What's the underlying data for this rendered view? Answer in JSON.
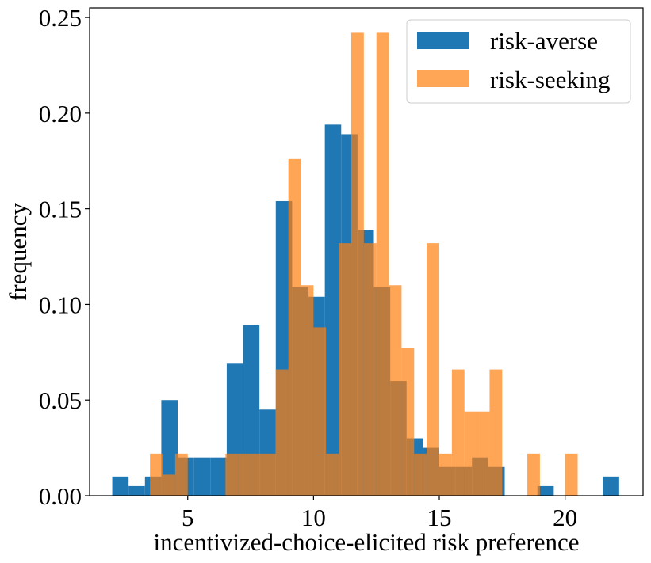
{
  "chart_data": {
    "type": "bar",
    "title": "",
    "xlabel": "incentivized-choice-elicited risk preference",
    "ylabel": "frequency",
    "xlim": [
      1.1,
      23.1
    ],
    "ylim": [
      0,
      0.255
    ],
    "xticks": [
      5,
      10,
      15,
      20
    ],
    "xtick_labels": [
      "5",
      "10",
      "15",
      "20"
    ],
    "yticks": [
      0,
      0.05,
      0.1,
      0.15,
      0.2,
      0.25
    ],
    "ytick_labels": [
      "0.00",
      "0.05",
      "0.10",
      "0.15",
      "0.20",
      "0.25"
    ],
    "grid": false,
    "legend_position": "top-right",
    "series": [
      {
        "name": "risk-averse",
        "color": "#1f77b4",
        "opacity": 1.0,
        "bins": [
          {
            "x0": 2.0,
            "x1": 2.65,
            "y": 0.01
          },
          {
            "x0": 2.65,
            "x1": 3.3,
            "y": 0.005
          },
          {
            "x0": 3.3,
            "x1": 3.95,
            "y": 0.01
          },
          {
            "x0": 3.95,
            "x1": 4.6,
            "y": 0.05
          },
          {
            "x0": 4.6,
            "x1": 5.25,
            "y": 0.02
          },
          {
            "x0": 5.25,
            "x1": 5.9,
            "y": 0.02
          },
          {
            "x0": 5.9,
            "x1": 6.55,
            "y": 0.02
          },
          {
            "x0": 6.55,
            "x1": 7.2,
            "y": 0.069
          },
          {
            "x0": 7.2,
            "x1": 7.85,
            "y": 0.089
          },
          {
            "x0": 7.85,
            "x1": 8.5,
            "y": 0.045
          },
          {
            "x0": 8.5,
            "x1": 9.15,
            "y": 0.154
          },
          {
            "x0": 9.15,
            "x1": 9.8,
            "y": 0.109
          },
          {
            "x0": 9.8,
            "x1": 10.45,
            "y": 0.104
          },
          {
            "x0": 10.45,
            "x1": 11.1,
            "y": 0.194
          },
          {
            "x0": 11.1,
            "x1": 11.75,
            "y": 0.189
          },
          {
            "x0": 11.75,
            "x1": 12.4,
            "y": 0.139
          },
          {
            "x0": 12.4,
            "x1": 13.05,
            "y": 0.109
          },
          {
            "x0": 13.05,
            "x1": 13.7,
            "y": 0.06
          },
          {
            "x0": 13.7,
            "x1": 14.35,
            "y": 0.03
          },
          {
            "x0": 14.35,
            "x1": 15.0,
            "y": 0.025
          },
          {
            "x0": 15.0,
            "x1": 15.65,
            "y": 0.015
          },
          {
            "x0": 15.65,
            "x1": 16.3,
            "y": 0.015
          },
          {
            "x0": 16.3,
            "x1": 16.95,
            "y": 0.02
          },
          {
            "x0": 16.95,
            "x1": 17.6,
            "y": 0.015
          },
          {
            "x0": 17.6,
            "x1": 18.25,
            "y": 0.0
          },
          {
            "x0": 18.25,
            "x1": 18.9,
            "y": 0.0
          },
          {
            "x0": 18.9,
            "x1": 19.55,
            "y": 0.005
          },
          {
            "x0": 19.55,
            "x1": 20.2,
            "y": 0.0
          },
          {
            "x0": 20.2,
            "x1": 20.85,
            "y": 0.0
          },
          {
            "x0": 20.85,
            "x1": 21.5,
            "y": 0.0
          },
          {
            "x0": 21.5,
            "x1": 22.15,
            "y": 0.01
          }
        ]
      },
      {
        "name": "risk-seeking",
        "color": "#ff7f0e",
        "opacity": 0.7,
        "bins": [
          {
            "x0": 3.5,
            "x1": 4.0,
            "y": 0.022
          },
          {
            "x0": 4.0,
            "x1": 4.5,
            "y": 0.011
          },
          {
            "x0": 4.5,
            "x1": 5.0,
            "y": 0.022
          },
          {
            "x0": 5.0,
            "x1": 5.5,
            "y": 0.0
          },
          {
            "x0": 5.5,
            "x1": 6.0,
            "y": 0.0
          },
          {
            "x0": 6.0,
            "x1": 6.5,
            "y": 0.0
          },
          {
            "x0": 6.5,
            "x1": 7.0,
            "y": 0.022
          },
          {
            "x0": 7.0,
            "x1": 7.5,
            "y": 0.022
          },
          {
            "x0": 7.5,
            "x1": 8.0,
            "y": 0.022
          },
          {
            "x0": 8.0,
            "x1": 8.5,
            "y": 0.022
          },
          {
            "x0": 8.5,
            "x1": 9.0,
            "y": 0.066
          },
          {
            "x0": 9.0,
            "x1": 9.5,
            "y": 0.176
          },
          {
            "x0": 9.5,
            "x1": 10.0,
            "y": 0.11
          },
          {
            "x0": 10.0,
            "x1": 10.5,
            "y": 0.088
          },
          {
            "x0": 10.5,
            "x1": 11.0,
            "y": 0.022
          },
          {
            "x0": 11.0,
            "x1": 11.5,
            "y": 0.132
          },
          {
            "x0": 11.5,
            "x1": 12.0,
            "y": 0.242
          },
          {
            "x0": 12.0,
            "x1": 12.5,
            "y": 0.132
          },
          {
            "x0": 12.5,
            "x1": 13.0,
            "y": 0.242
          },
          {
            "x0": 13.0,
            "x1": 13.5,
            "y": 0.11
          },
          {
            "x0": 13.5,
            "x1": 14.0,
            "y": 0.077
          },
          {
            "x0": 14.0,
            "x1": 14.5,
            "y": 0.022
          },
          {
            "x0": 14.5,
            "x1": 15.0,
            "y": 0.132
          },
          {
            "x0": 15.0,
            "x1": 15.5,
            "y": 0.022
          },
          {
            "x0": 15.5,
            "x1": 16.0,
            "y": 0.066
          },
          {
            "x0": 16.0,
            "x1": 16.5,
            "y": 0.044
          },
          {
            "x0": 16.5,
            "x1": 17.0,
            "y": 0.044
          },
          {
            "x0": 17.0,
            "x1": 17.5,
            "y": 0.066
          },
          {
            "x0": 17.5,
            "x1": 18.0,
            "y": 0.0
          },
          {
            "x0": 18.0,
            "x1": 18.5,
            "y": 0.0
          },
          {
            "x0": 18.5,
            "x1": 19.0,
            "y": 0.022
          },
          {
            "x0": 19.0,
            "x1": 19.5,
            "y": 0.0
          },
          {
            "x0": 19.5,
            "x1": 20.0,
            "y": 0.0
          },
          {
            "x0": 20.0,
            "x1": 20.5,
            "y": 0.022
          }
        ]
      }
    ]
  }
}
